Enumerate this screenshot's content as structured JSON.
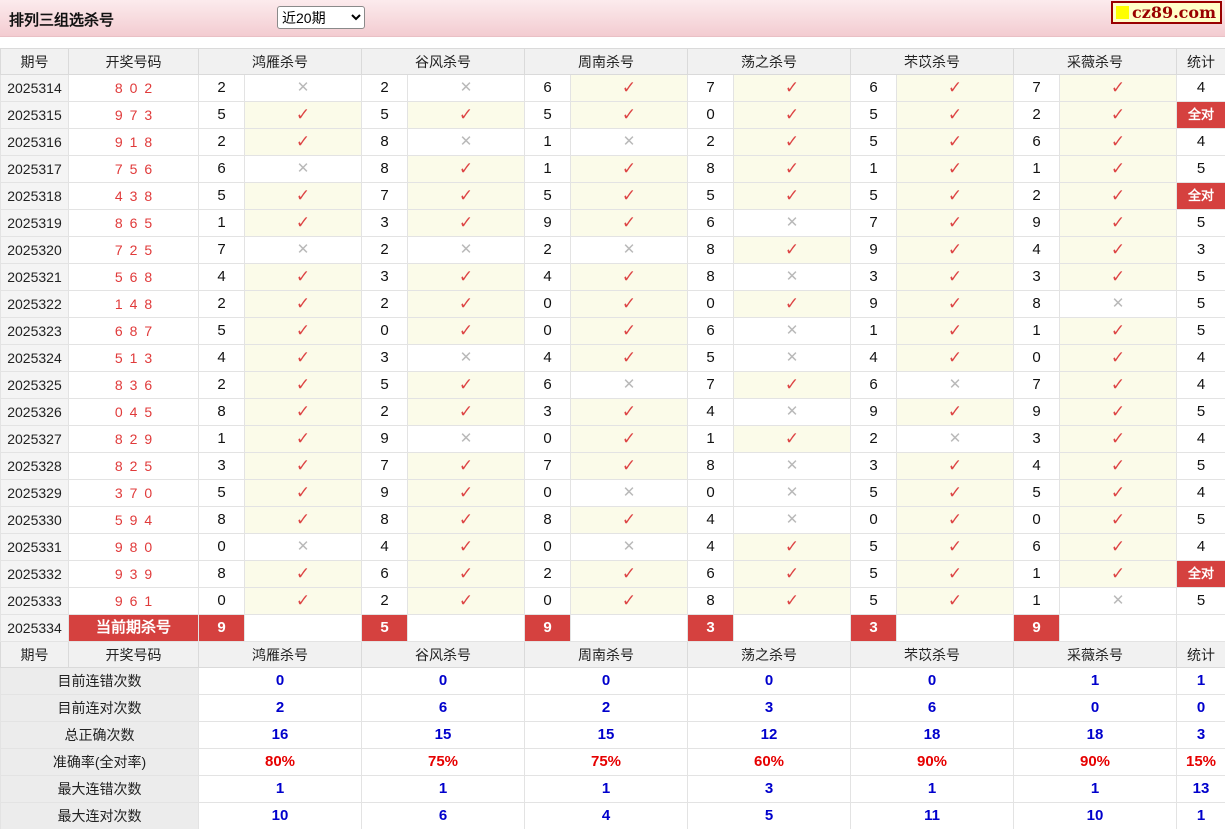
{
  "title": "排列三组选杀号",
  "range_select": {
    "selected": "近20期",
    "options": [
      "近20期"
    ]
  },
  "logo": {
    "text": "cz89.com",
    "icon": "yellow-square"
  },
  "labels": {
    "all_correct": "全对",
    "current_kill": "当前期杀号"
  },
  "marks": {
    "check": "✓",
    "cross": "✕"
  },
  "colors": {
    "accent_red": "#d5413f",
    "check_red": "#dd4545",
    "cross_gray": "#b9b9b9",
    "value_blue": "#0000cc",
    "rate_red": "#e60000",
    "draw_number_red": "#e03a3a",
    "topbar_pink": "#f3ccd1",
    "mark_bg_yellow": "#fbfbe9",
    "logo_red": "#990000",
    "logo_bg": "#ffffc8"
  },
  "table": {
    "headers": {
      "period": "期号",
      "numbers": "开奖号码",
      "experts": [
        "鸿雁杀号",
        "谷风杀号",
        "周南杀号",
        "荡之杀号",
        "芣苡杀号",
        "采薇杀号"
      ],
      "stat": "统计"
    },
    "rows": [
      {
        "period": "2025314",
        "numbers": "802",
        "kills": [
          {
            "n": "2",
            "ok": false
          },
          {
            "n": "2",
            "ok": false
          },
          {
            "n": "6",
            "ok": true
          },
          {
            "n": "7",
            "ok": true
          },
          {
            "n": "6",
            "ok": true
          },
          {
            "n": "7",
            "ok": true
          }
        ],
        "stat": "4"
      },
      {
        "period": "2025315",
        "numbers": "973",
        "kills": [
          {
            "n": "5",
            "ok": true
          },
          {
            "n": "5",
            "ok": true
          },
          {
            "n": "5",
            "ok": true
          },
          {
            "n": "0",
            "ok": true
          },
          {
            "n": "5",
            "ok": true
          },
          {
            "n": "2",
            "ok": true
          }
        ],
        "stat": "全对"
      },
      {
        "period": "2025316",
        "numbers": "918",
        "kills": [
          {
            "n": "2",
            "ok": true
          },
          {
            "n": "8",
            "ok": false
          },
          {
            "n": "1",
            "ok": false
          },
          {
            "n": "2",
            "ok": true
          },
          {
            "n": "5",
            "ok": true
          },
          {
            "n": "6",
            "ok": true
          }
        ],
        "stat": "4"
      },
      {
        "period": "2025317",
        "numbers": "756",
        "kills": [
          {
            "n": "6",
            "ok": false
          },
          {
            "n": "8",
            "ok": true
          },
          {
            "n": "1",
            "ok": true
          },
          {
            "n": "8",
            "ok": true
          },
          {
            "n": "1",
            "ok": true
          },
          {
            "n": "1",
            "ok": true
          }
        ],
        "stat": "5"
      },
      {
        "period": "2025318",
        "numbers": "438",
        "kills": [
          {
            "n": "5",
            "ok": true
          },
          {
            "n": "7",
            "ok": true
          },
          {
            "n": "5",
            "ok": true
          },
          {
            "n": "5",
            "ok": true
          },
          {
            "n": "5",
            "ok": true
          },
          {
            "n": "2",
            "ok": true
          }
        ],
        "stat": "全对"
      },
      {
        "period": "2025319",
        "numbers": "865",
        "kills": [
          {
            "n": "1",
            "ok": true
          },
          {
            "n": "3",
            "ok": true
          },
          {
            "n": "9",
            "ok": true
          },
          {
            "n": "6",
            "ok": false
          },
          {
            "n": "7",
            "ok": true
          },
          {
            "n": "9",
            "ok": true
          }
        ],
        "stat": "5"
      },
      {
        "period": "2025320",
        "numbers": "725",
        "kills": [
          {
            "n": "7",
            "ok": false
          },
          {
            "n": "2",
            "ok": false
          },
          {
            "n": "2",
            "ok": false
          },
          {
            "n": "8",
            "ok": true
          },
          {
            "n": "9",
            "ok": true
          },
          {
            "n": "4",
            "ok": true
          }
        ],
        "stat": "3"
      },
      {
        "period": "2025321",
        "numbers": "568",
        "kills": [
          {
            "n": "4",
            "ok": true
          },
          {
            "n": "3",
            "ok": true
          },
          {
            "n": "4",
            "ok": true
          },
          {
            "n": "8",
            "ok": false
          },
          {
            "n": "3",
            "ok": true
          },
          {
            "n": "3",
            "ok": true
          }
        ],
        "stat": "5"
      },
      {
        "period": "2025322",
        "numbers": "148",
        "kills": [
          {
            "n": "2",
            "ok": true
          },
          {
            "n": "2",
            "ok": true
          },
          {
            "n": "0",
            "ok": true
          },
          {
            "n": "0",
            "ok": true
          },
          {
            "n": "9",
            "ok": true
          },
          {
            "n": "8",
            "ok": false
          }
        ],
        "stat": "5"
      },
      {
        "period": "2025323",
        "numbers": "687",
        "kills": [
          {
            "n": "5",
            "ok": true
          },
          {
            "n": "0",
            "ok": true
          },
          {
            "n": "0",
            "ok": true
          },
          {
            "n": "6",
            "ok": false
          },
          {
            "n": "1",
            "ok": true
          },
          {
            "n": "1",
            "ok": true
          }
        ],
        "stat": "5"
      },
      {
        "period": "2025324",
        "numbers": "513",
        "kills": [
          {
            "n": "4",
            "ok": true
          },
          {
            "n": "3",
            "ok": false
          },
          {
            "n": "4",
            "ok": true
          },
          {
            "n": "5",
            "ok": false
          },
          {
            "n": "4",
            "ok": true
          },
          {
            "n": "0",
            "ok": true
          }
        ],
        "stat": "4"
      },
      {
        "period": "2025325",
        "numbers": "836",
        "kills": [
          {
            "n": "2",
            "ok": true
          },
          {
            "n": "5",
            "ok": true
          },
          {
            "n": "6",
            "ok": false
          },
          {
            "n": "7",
            "ok": true
          },
          {
            "n": "6",
            "ok": false
          },
          {
            "n": "7",
            "ok": true
          }
        ],
        "stat": "4"
      },
      {
        "period": "2025326",
        "numbers": "045",
        "kills": [
          {
            "n": "8",
            "ok": true
          },
          {
            "n": "2",
            "ok": true
          },
          {
            "n": "3",
            "ok": true
          },
          {
            "n": "4",
            "ok": false
          },
          {
            "n": "9",
            "ok": true
          },
          {
            "n": "9",
            "ok": true
          }
        ],
        "stat": "5"
      },
      {
        "period": "2025327",
        "numbers": "829",
        "kills": [
          {
            "n": "1",
            "ok": true
          },
          {
            "n": "9",
            "ok": false
          },
          {
            "n": "0",
            "ok": true
          },
          {
            "n": "1",
            "ok": true
          },
          {
            "n": "2",
            "ok": false
          },
          {
            "n": "3",
            "ok": true
          }
        ],
        "stat": "4"
      },
      {
        "period": "2025328",
        "numbers": "825",
        "kills": [
          {
            "n": "3",
            "ok": true
          },
          {
            "n": "7",
            "ok": true
          },
          {
            "n": "7",
            "ok": true
          },
          {
            "n": "8",
            "ok": false
          },
          {
            "n": "3",
            "ok": true
          },
          {
            "n": "4",
            "ok": true
          }
        ],
        "stat": "5"
      },
      {
        "period": "2025329",
        "numbers": "370",
        "kills": [
          {
            "n": "5",
            "ok": true
          },
          {
            "n": "9",
            "ok": true
          },
          {
            "n": "0",
            "ok": false
          },
          {
            "n": "0",
            "ok": false
          },
          {
            "n": "5",
            "ok": true
          },
          {
            "n": "5",
            "ok": true
          }
        ],
        "stat": "4"
      },
      {
        "period": "2025330",
        "numbers": "594",
        "kills": [
          {
            "n": "8",
            "ok": true
          },
          {
            "n": "8",
            "ok": true
          },
          {
            "n": "8",
            "ok": true
          },
          {
            "n": "4",
            "ok": false
          },
          {
            "n": "0",
            "ok": true
          },
          {
            "n": "0",
            "ok": true
          }
        ],
        "stat": "5"
      },
      {
        "period": "2025331",
        "numbers": "980",
        "kills": [
          {
            "n": "0",
            "ok": false
          },
          {
            "n": "4",
            "ok": true
          },
          {
            "n": "0",
            "ok": false
          },
          {
            "n": "4",
            "ok": true
          },
          {
            "n": "5",
            "ok": true
          },
          {
            "n": "6",
            "ok": true
          }
        ],
        "stat": "4"
      },
      {
        "period": "2025332",
        "numbers": "939",
        "kills": [
          {
            "n": "8",
            "ok": true
          },
          {
            "n": "6",
            "ok": true
          },
          {
            "n": "2",
            "ok": true
          },
          {
            "n": "6",
            "ok": true
          },
          {
            "n": "5",
            "ok": true
          },
          {
            "n": "1",
            "ok": true
          }
        ],
        "stat": "全对"
      },
      {
        "period": "2025333",
        "numbers": "961",
        "kills": [
          {
            "n": "0",
            "ok": true
          },
          {
            "n": "2",
            "ok": true
          },
          {
            "n": "0",
            "ok": true
          },
          {
            "n": "8",
            "ok": true
          },
          {
            "n": "5",
            "ok": true
          },
          {
            "n": "1",
            "ok": false
          }
        ],
        "stat": "5"
      }
    ],
    "current_row": {
      "period": "2025334",
      "label": "当前期杀号",
      "kills": [
        "9",
        "5",
        "9",
        "3",
        "3",
        "9"
      ],
      "stat": ""
    },
    "summary_rows": [
      {
        "label": "目前连错次数",
        "values": [
          "0",
          "0",
          "0",
          "0",
          "0",
          "1"
        ],
        "stat": "1",
        "style": "blue"
      },
      {
        "label": "目前连对次数",
        "values": [
          "2",
          "6",
          "2",
          "3",
          "6",
          "0"
        ],
        "stat": "0",
        "style": "blue"
      },
      {
        "label": "总正确次数",
        "values": [
          "16",
          "15",
          "15",
          "12",
          "18",
          "18"
        ],
        "stat": "3",
        "style": "blue"
      },
      {
        "label": "准确率(全对率)",
        "values": [
          "80%",
          "75%",
          "75%",
          "60%",
          "90%",
          "90%"
        ],
        "stat": "15%",
        "style": "red"
      },
      {
        "label": "最大连错次数",
        "values": [
          "1",
          "1",
          "1",
          "3",
          "1",
          "1"
        ],
        "stat": "13",
        "style": "blue"
      },
      {
        "label": "最大连对次数",
        "values": [
          "10",
          "6",
          "4",
          "5",
          "11",
          "10"
        ],
        "stat": "1",
        "style": "blue"
      }
    ]
  }
}
